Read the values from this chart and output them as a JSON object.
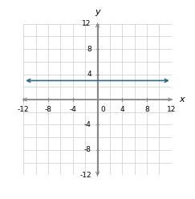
{
  "xlim": [
    -12,
    12
  ],
  "ylim": [
    -12,
    12
  ],
  "xticks": [
    -12,
    -8,
    -4,
    4,
    8,
    12
  ],
  "yticks": [
    -12,
    -8,
    -4,
    4,
    8,
    12
  ],
  "xtick_labels": [
    "-12",
    "-8",
    "-4",
    "4",
    "8",
    "12"
  ],
  "ytick_labels": [
    "-12",
    "-8",
    "-4",
    "4",
    "8",
    "12"
  ],
  "grid_minor_step": 2,
  "line_y": 3,
  "line_x_start": -12,
  "line_x_end": 12,
  "line_color": "#2e6b8a",
  "line_width": 1.2,
  "axis_color": "#888888",
  "grid_color": "#cccccc",
  "background_color": "#ffffff",
  "xlabel": "x",
  "ylabel": "y",
  "tick_fontsize": 6.5,
  "label_fontsize": 8,
  "zero_label": "0"
}
